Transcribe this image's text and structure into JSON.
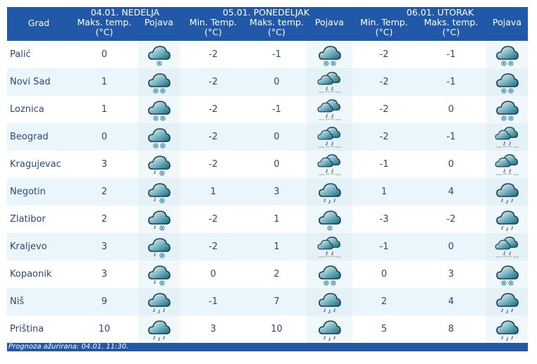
{
  "header": {
    "city_label": "Grad",
    "days": [
      {
        "title": "04.01. NEDELJA",
        "cols": [
          "Maks. temp. (°C)",
          "Pojava"
        ]
      },
      {
        "title": "05.01. PONEDELJAK",
        "cols": [
          "Min. Temp. (°C)",
          "Maks. temp. (°C)",
          "Pojava"
        ]
      },
      {
        "title": "06.01. UTORAK",
        "cols": [
          "Min. Temp. (°C)",
          "Maks. temp. (°C)",
          "Pojava"
        ]
      }
    ]
  },
  "rows": [
    {
      "city": "Palić",
      "d1": {
        "max": "0",
        "icon": "snow-icon"
      },
      "d2": {
        "min": "-2",
        "max": "-1",
        "icon": "snow-heavy-icon"
      },
      "d3": {
        "min": "-2",
        "max": "-1",
        "icon": "snow-heavy-icon"
      }
    },
    {
      "city": "Novi Sad",
      "d1": {
        "max": "1",
        "icon": "snow-heavy-icon"
      },
      "d2": {
        "min": "-2",
        "max": "0",
        "icon": "clouds-sleet-fog-icon"
      },
      "d3": {
        "min": "-2",
        "max": "-1",
        "icon": "snow-heavy-icon"
      }
    },
    {
      "city": "Loznica",
      "d1": {
        "max": "1",
        "icon": "snow-heavy-icon"
      },
      "d2": {
        "min": "-2",
        "max": "-1",
        "icon": "clouds-sleet-fog-icon"
      },
      "d3": {
        "min": "-2",
        "max": "0",
        "icon": "snow-heavy-icon"
      }
    },
    {
      "city": "Beograd",
      "d1": {
        "max": "0",
        "icon": "snow-heavy-icon"
      },
      "d2": {
        "min": "-2",
        "max": "0",
        "icon": "clouds-sleet-fog-icon"
      },
      "d3": {
        "min": "-2",
        "max": "-1",
        "icon": "clouds-sleet-fog-icon"
      }
    },
    {
      "city": "Kragujevac",
      "d1": {
        "max": "3",
        "icon": "sleet-icon"
      },
      "d2": {
        "min": "-2",
        "max": "0",
        "icon": "clouds-sleet-fog-icon"
      },
      "d3": {
        "min": "-1",
        "max": "0",
        "icon": "clouds-sleet-fog-icon"
      }
    },
    {
      "city": "Negotin",
      "d1": {
        "max": "2",
        "icon": "sleet-icon"
      },
      "d2": {
        "min": "1",
        "max": "3",
        "icon": "rain-icon"
      },
      "d3": {
        "min": "1",
        "max": "4",
        "icon": "rain-icon"
      }
    },
    {
      "city": "Zlatibor",
      "d1": {
        "max": "2",
        "icon": "sleet-icon"
      },
      "d2": {
        "min": "-2",
        "max": "1",
        "icon": "snow-icon"
      },
      "d3": {
        "min": "-3",
        "max": "-2",
        "icon": "rain-icon"
      }
    },
    {
      "city": "Kraljevo",
      "d1": {
        "max": "3",
        "icon": "sleet-icon"
      },
      "d2": {
        "min": "-2",
        "max": "1",
        "icon": "clouds-sleet-fog-icon"
      },
      "d3": {
        "min": "-1",
        "max": "0",
        "icon": "clouds-sleet-fog-icon"
      }
    },
    {
      "city": "Kopaonik",
      "d1": {
        "max": "3",
        "icon": "sleet-icon"
      },
      "d2": {
        "min": "0",
        "max": "2",
        "icon": "snow-heavy-icon"
      },
      "d3": {
        "min": "0",
        "max": "3",
        "icon": "snow-heavy-icon"
      }
    },
    {
      "city": "Niš",
      "d1": {
        "max": "9",
        "icon": "rain-icon"
      },
      "d2": {
        "min": "-1",
        "max": "7",
        "icon": "rain-icon"
      },
      "d3": {
        "min": "2",
        "max": "4",
        "icon": "rain-icon"
      }
    },
    {
      "city": "Priština",
      "d1": {
        "max": "10",
        "icon": "rain-icon"
      },
      "d2": {
        "min": "3",
        "max": "10",
        "icon": "rain-icon"
      },
      "d3": {
        "min": "5",
        "max": "8",
        "icon": "rain-icon"
      }
    }
  ],
  "footer": "Prognoza ažurirana:  04.01. 11:30.",
  "colors": {
    "header": "#2159a8",
    "alt_row": "#eaf6fb",
    "text": "#2a4a7a"
  }
}
